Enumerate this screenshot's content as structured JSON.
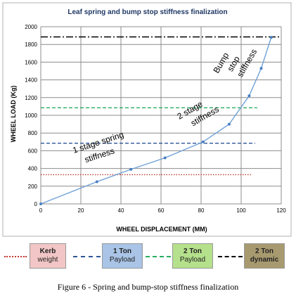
{
  "chart_data": {
    "type": "line",
    "title": "Leaf spring and bump stop stiffness finalization",
    "xlabel": "WHEEL DISPLACEMENT (MM)",
    "ylabel": "WHEEL LOAD (Kg)",
    "xlim": [
      0,
      120
    ],
    "ylim": [
      0,
      2000
    ],
    "xticks": [
      "0",
      "20",
      "40",
      "60",
      "80",
      "100",
      "120"
    ],
    "yticks": [
      "0",
      "200",
      "400",
      "600",
      "800",
      "1000",
      "1200",
      "1400",
      "1600",
      "1800",
      "2000"
    ],
    "grid": true,
    "series": [
      {
        "name": "stiffness curve",
        "x": [
          0,
          28,
          45,
          62,
          81,
          94,
          104,
          110,
          115
        ],
        "y": [
          0,
          250,
          390,
          520,
          700,
          900,
          1220,
          1530,
          1880
        ]
      }
    ],
    "reference_lines": [
      {
        "name": "Kerb weight",
        "y": 330,
        "x_end": 105,
        "style": "dotted",
        "color": "#c0392b"
      },
      {
        "name": "1 Ton Payload",
        "y": 685,
        "x_end": 107,
        "style": "dashed",
        "color": "#2e5597"
      },
      {
        "name": "2 Ton Payload",
        "y": 1085,
        "x_end": 108,
        "style": "dashed",
        "color": "#27ae60"
      },
      {
        "name": "2 Ton dynamic",
        "y": 1885,
        "x_end": 120,
        "style": "dashdot",
        "color": "#000000"
      }
    ],
    "annotations": [
      {
        "line1": "1 stage spring",
        "line2": "stiffness"
      },
      {
        "line1": "2 stage",
        "line2": "stiffness"
      },
      {
        "line1": "Bump",
        "line2": "stop",
        "line3": "stiffness"
      }
    ]
  },
  "legend": [
    {
      "label_line1": "Kerb",
      "label_line2": "weight",
      "bg": "#f2c6c6",
      "line_color": "#c0392b",
      "style": "dotted"
    },
    {
      "label_line1": "1 Ton",
      "label_line2": "Payload",
      "bg": "#a9c4e6",
      "line_color": "#2e5597",
      "style": "dashed"
    },
    {
      "label_line1": "2 Ton",
      "label_line2": "Payload",
      "bg": "#b5e08c",
      "line_color": "#27ae60",
      "style": "dashed"
    },
    {
      "label_line1": "2 Ton",
      "label_line2": "dynamic",
      "bg": "#a89a6f",
      "line_color": "#000000",
      "style": "dashdot"
    }
  ],
  "caption": "Figure 6 - Spring and bump-stop stiffness finalization"
}
